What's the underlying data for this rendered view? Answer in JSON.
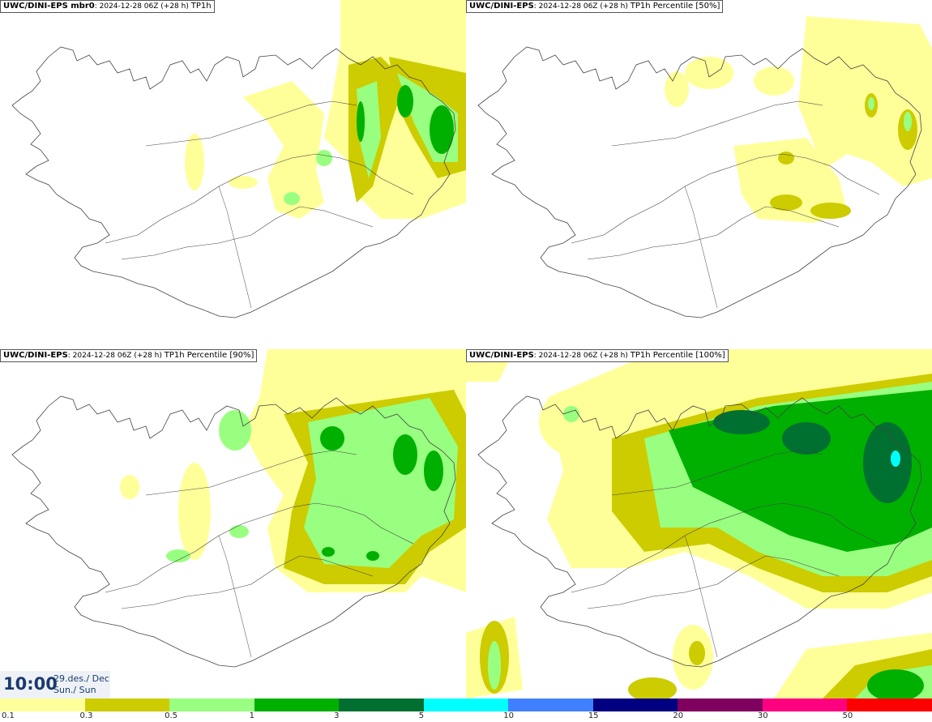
{
  "panels": [
    {
      "model": "UWC/DINI-EPS mbr0",
      "run": "2024-12-28 06Z (+28 h)",
      "field": "TP1h"
    },
    {
      "model": "UWC/DINI-EPS",
      "run": "2024-12-28 06Z (+28 h)",
      "field": "TP1h Percentile [50%]"
    },
    {
      "model": "UWC/DINI-EPS",
      "run": "2024-12-28 06Z (+28 h)",
      "field": "TP1h Percentile [90%]"
    },
    {
      "model": "UWC/DINI-EPS",
      "run": "2024-12-28 06Z (+28 h)",
      "field": "TP1h Percentile [100%]"
    }
  ],
  "valid_time": {
    "time": "10:00",
    "date_line1": "29.des./ Dec",
    "date_line2": "Sun./ Sun"
  },
  "legend": {
    "colors": [
      "#ffff99",
      "#cccc00",
      "#99ff80",
      "#00b000",
      "#007030",
      "#00ffff",
      "#4080ff",
      "#000080",
      "#800060",
      "#ff0080",
      "#ff0000"
    ],
    "labels": [
      "0.1",
      "0.3",
      "0.5",
      "1",
      "3",
      "5",
      "10",
      "15",
      "20",
      "30",
      "50"
    ]
  }
}
